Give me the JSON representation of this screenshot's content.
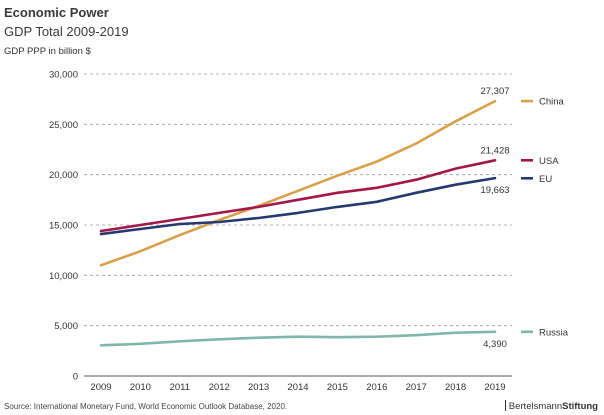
{
  "header": {
    "title": "Economic Power",
    "subtitle": "GDP Total 2009-2019",
    "unit_label": "GDP PPP in billion $"
  },
  "footer": {
    "source": "Source: International Monetary Fund, World Economic Outlook Database, 2020.",
    "brand_part1": "Bertelsmann",
    "brand_part2": "Stiftung"
  },
  "chart_data": {
    "type": "line",
    "title": "Economic Power",
    "subtitle": "GDP Total 2009-2019",
    "xlabel": "",
    "ylabel": "GDP PPP in billion $",
    "x": [
      2009,
      2010,
      2011,
      2012,
      2013,
      2014,
      2015,
      2016,
      2017,
      2018,
      2019
    ],
    "ylim": [
      0,
      30000
    ],
    "yticks": [
      0,
      5000,
      10000,
      15000,
      20000,
      25000,
      30000
    ],
    "ytick_labels": [
      "0",
      "5,000",
      "10,000",
      "15,000",
      "20,000",
      "25,000",
      "30,000"
    ],
    "grid": "horizontal dashed",
    "legend": "right",
    "series": [
      {
        "name": "China",
        "color": "#d9a04a",
        "values": [
          11000,
          12400,
          14000,
          15500,
          16900,
          18400,
          19900,
          21300,
          23100,
          25300,
          27307
        ],
        "end_label": "27,307",
        "end_label_pos": "above"
      },
      {
        "name": "USA",
        "color": "#a3174a",
        "values": [
          14400,
          15000,
          15600,
          16200,
          16800,
          17500,
          18200,
          18700,
          19500,
          20600,
          21428
        ],
        "end_label": "21,428",
        "end_label_pos": "above"
      },
      {
        "name": "EU",
        "color": "#26386f",
        "values": [
          14100,
          14600,
          15100,
          15300,
          15700,
          16200,
          16800,
          17300,
          18200,
          19000,
          19663
        ],
        "end_label": "19,663",
        "end_label_pos": "below"
      },
      {
        "name": "Russia",
        "color": "#7fb7aa",
        "values": [
          3050,
          3200,
          3450,
          3650,
          3800,
          3900,
          3850,
          3900,
          4050,
          4300,
          4390
        ],
        "end_label": "4,390",
        "end_label_pos": "below"
      }
    ]
  }
}
